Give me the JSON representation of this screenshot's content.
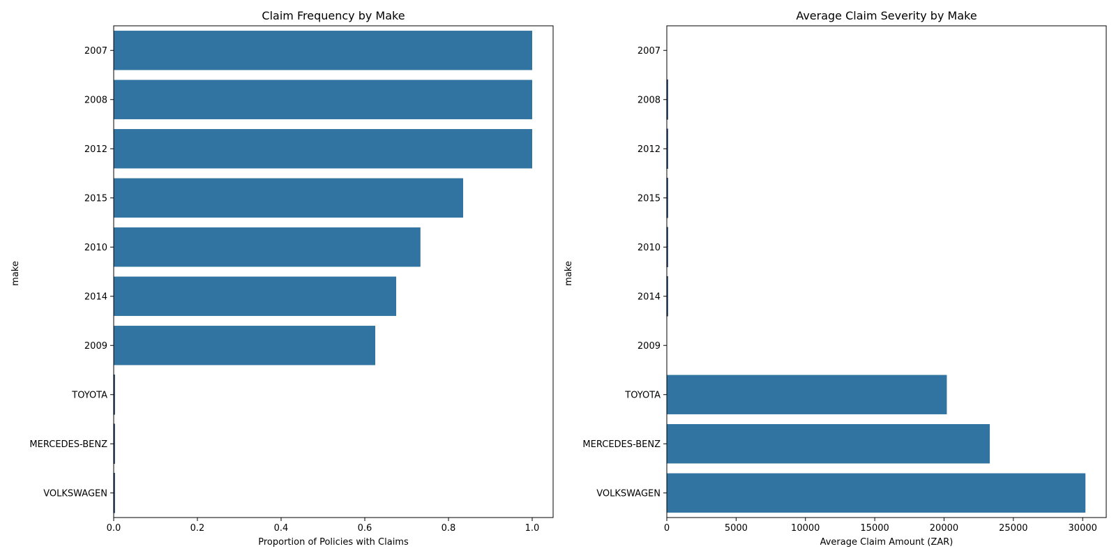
{
  "figure": {
    "bar_color": "#3274a1",
    "edge_color": "#1f3b63"
  },
  "chart_data": [
    {
      "type": "bar",
      "orientation": "horizontal",
      "title": "Claim Frequency by Make",
      "xlabel": "Proportion of Policies with Claims",
      "ylabel": "make",
      "categories": [
        "2007",
        "2008",
        "2012",
        "2015",
        "2010",
        "2014",
        "2009",
        "TOYOTA",
        "MERCEDES-BENZ",
        "VOLKSWAGEN"
      ],
      "values": [
        1.0,
        1.0,
        1.0,
        0.835,
        0.733,
        0.675,
        0.625,
        0.002,
        0.002,
        0.002
      ],
      "xlim": [
        0,
        1.05
      ],
      "xticks": [
        0,
        0.2,
        0.4,
        0.6,
        0.8,
        1.0
      ],
      "xtick_labels": [
        "0.0",
        "0.2",
        "0.4",
        "0.6",
        "0.8",
        "1.0"
      ],
      "grid": false,
      "legend": "none"
    },
    {
      "type": "bar",
      "orientation": "horizontal",
      "title": "Average Claim Severity by Make",
      "xlabel": "Average Claim Amount (ZAR)",
      "ylabel": "make",
      "categories": [
        "2007",
        "2008",
        "2012",
        "2015",
        "2010",
        "2014",
        "2009",
        "TOYOTA",
        "MERCEDES-BENZ",
        "VOLKSWAGEN"
      ],
      "values": [
        0,
        60,
        60,
        60,
        60,
        60,
        0,
        20200,
        23300,
        30200
      ],
      "xlim": [
        0,
        31700
      ],
      "xticks": [
        0,
        5000,
        10000,
        15000,
        20000,
        25000,
        30000
      ],
      "xtick_labels": [
        "0",
        "5000",
        "10000",
        "15000",
        "20000",
        "25000",
        "30000"
      ],
      "grid": false,
      "legend": "none"
    }
  ]
}
